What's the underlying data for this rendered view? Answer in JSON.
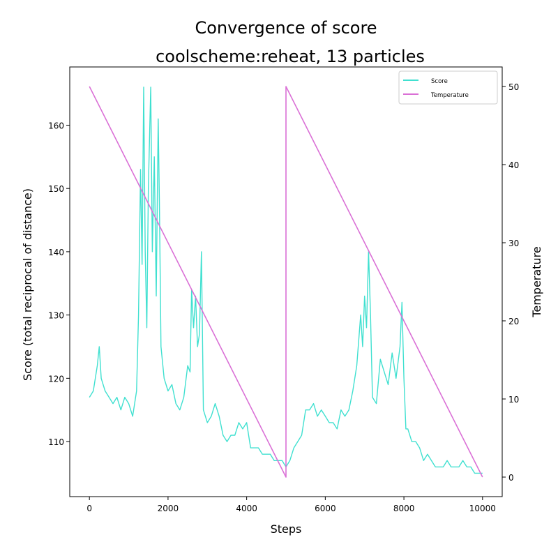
{
  "chart_data": {
    "type": "line",
    "title_line1": "Convergence of score",
    "title_line2": "coolscheme:reheat, 13 particles",
    "xlabel": "Steps",
    "ylabel": "Score (total reciprocal of distance)",
    "y2label": "Temperature",
    "xlim": [
      -500,
      10500
    ],
    "ylim": [
      101.3,
      169.2
    ],
    "y2lim": [
      -2.5,
      52.5
    ],
    "xticks": [
      0,
      2000,
      4000,
      6000,
      8000,
      10000
    ],
    "yticks": [
      110,
      120,
      130,
      140,
      150,
      160
    ],
    "y2ticks": [
      0,
      10,
      20,
      30,
      40,
      50
    ],
    "grid": false,
    "legend_position": "top-right",
    "colors": {
      "score": "#40e0d0",
      "temperature": "#da70d6"
    },
    "series": [
      {
        "name": "Score",
        "axis": "left",
        "x": [
          0,
          100,
          200,
          250,
          300,
          400,
          500,
          600,
          700,
          800,
          900,
          1000,
          1100,
          1200,
          1250,
          1300,
          1340,
          1380,
          1420,
          1460,
          1500,
          1560,
          1600,
          1650,
          1700,
          1750,
          1780,
          1820,
          1900,
          2000,
          2100,
          2200,
          2300,
          2400,
          2500,
          2560,
          2600,
          2650,
          2700,
          2750,
          2800,
          2850,
          2900,
          3000,
          3100,
          3200,
          3300,
          3400,
          3500,
          3600,
          3700,
          3800,
          3900,
          4000,
          4100,
          4200,
          4300,
          4400,
          4500,
          4600,
          4700,
          4800,
          4900,
          5000,
          5100,
          5200,
          5300,
          5400,
          5500,
          5600,
          5700,
          5800,
          5900,
          6000,
          6100,
          6200,
          6300,
          6400,
          6500,
          6600,
          6700,
          6800,
          6900,
          6950,
          7000,
          7050,
          7100,
          7150,
          7200,
          7300,
          7400,
          7500,
          7600,
          7700,
          7800,
          7900,
          7950,
          8000,
          8050,
          8100,
          8200,
          8300,
          8400,
          8500,
          8600,
          8700,
          8800,
          8900,
          9000,
          9100,
          9200,
          9300,
          9400,
          9500,
          9600,
          9700,
          9800,
          9900,
          10000
        ],
        "y": [
          117,
          118,
          122,
          125,
          120,
          118,
          117,
          116,
          117,
          115,
          117,
          116,
          114,
          118,
          130,
          153,
          138,
          166,
          140,
          128,
          150,
          166,
          140,
          155,
          133,
          161,
          148,
          125,
          120,
          118,
          119,
          116,
          115,
          117,
          122,
          121,
          134,
          128,
          133,
          125,
          127,
          140,
          115,
          113,
          114,
          116,
          114,
          111,
          110,
          111,
          111,
          113,
          112,
          113,
          109,
          109,
          109,
          108,
          108,
          108,
          107,
          107,
          107,
          106,
          107,
          109,
          110,
          111,
          115,
          115,
          116,
          114,
          115,
          114,
          113,
          113,
          112,
          115,
          114,
          115,
          118,
          122,
          130,
          125,
          133,
          128,
          140,
          130,
          117,
          116,
          123,
          121,
          119,
          124,
          120,
          125,
          132,
          120,
          112,
          112,
          110,
          110,
          109,
          107,
          108,
          107,
          106,
          106,
          106,
          107,
          106,
          106,
          106,
          107,
          106,
          106,
          105,
          105,
          105
        ]
      },
      {
        "name": "Temperature",
        "axis": "right",
        "x": [
          0,
          5000,
          5000,
          10000
        ],
        "y": [
          50,
          0,
          50,
          0
        ]
      }
    ]
  }
}
